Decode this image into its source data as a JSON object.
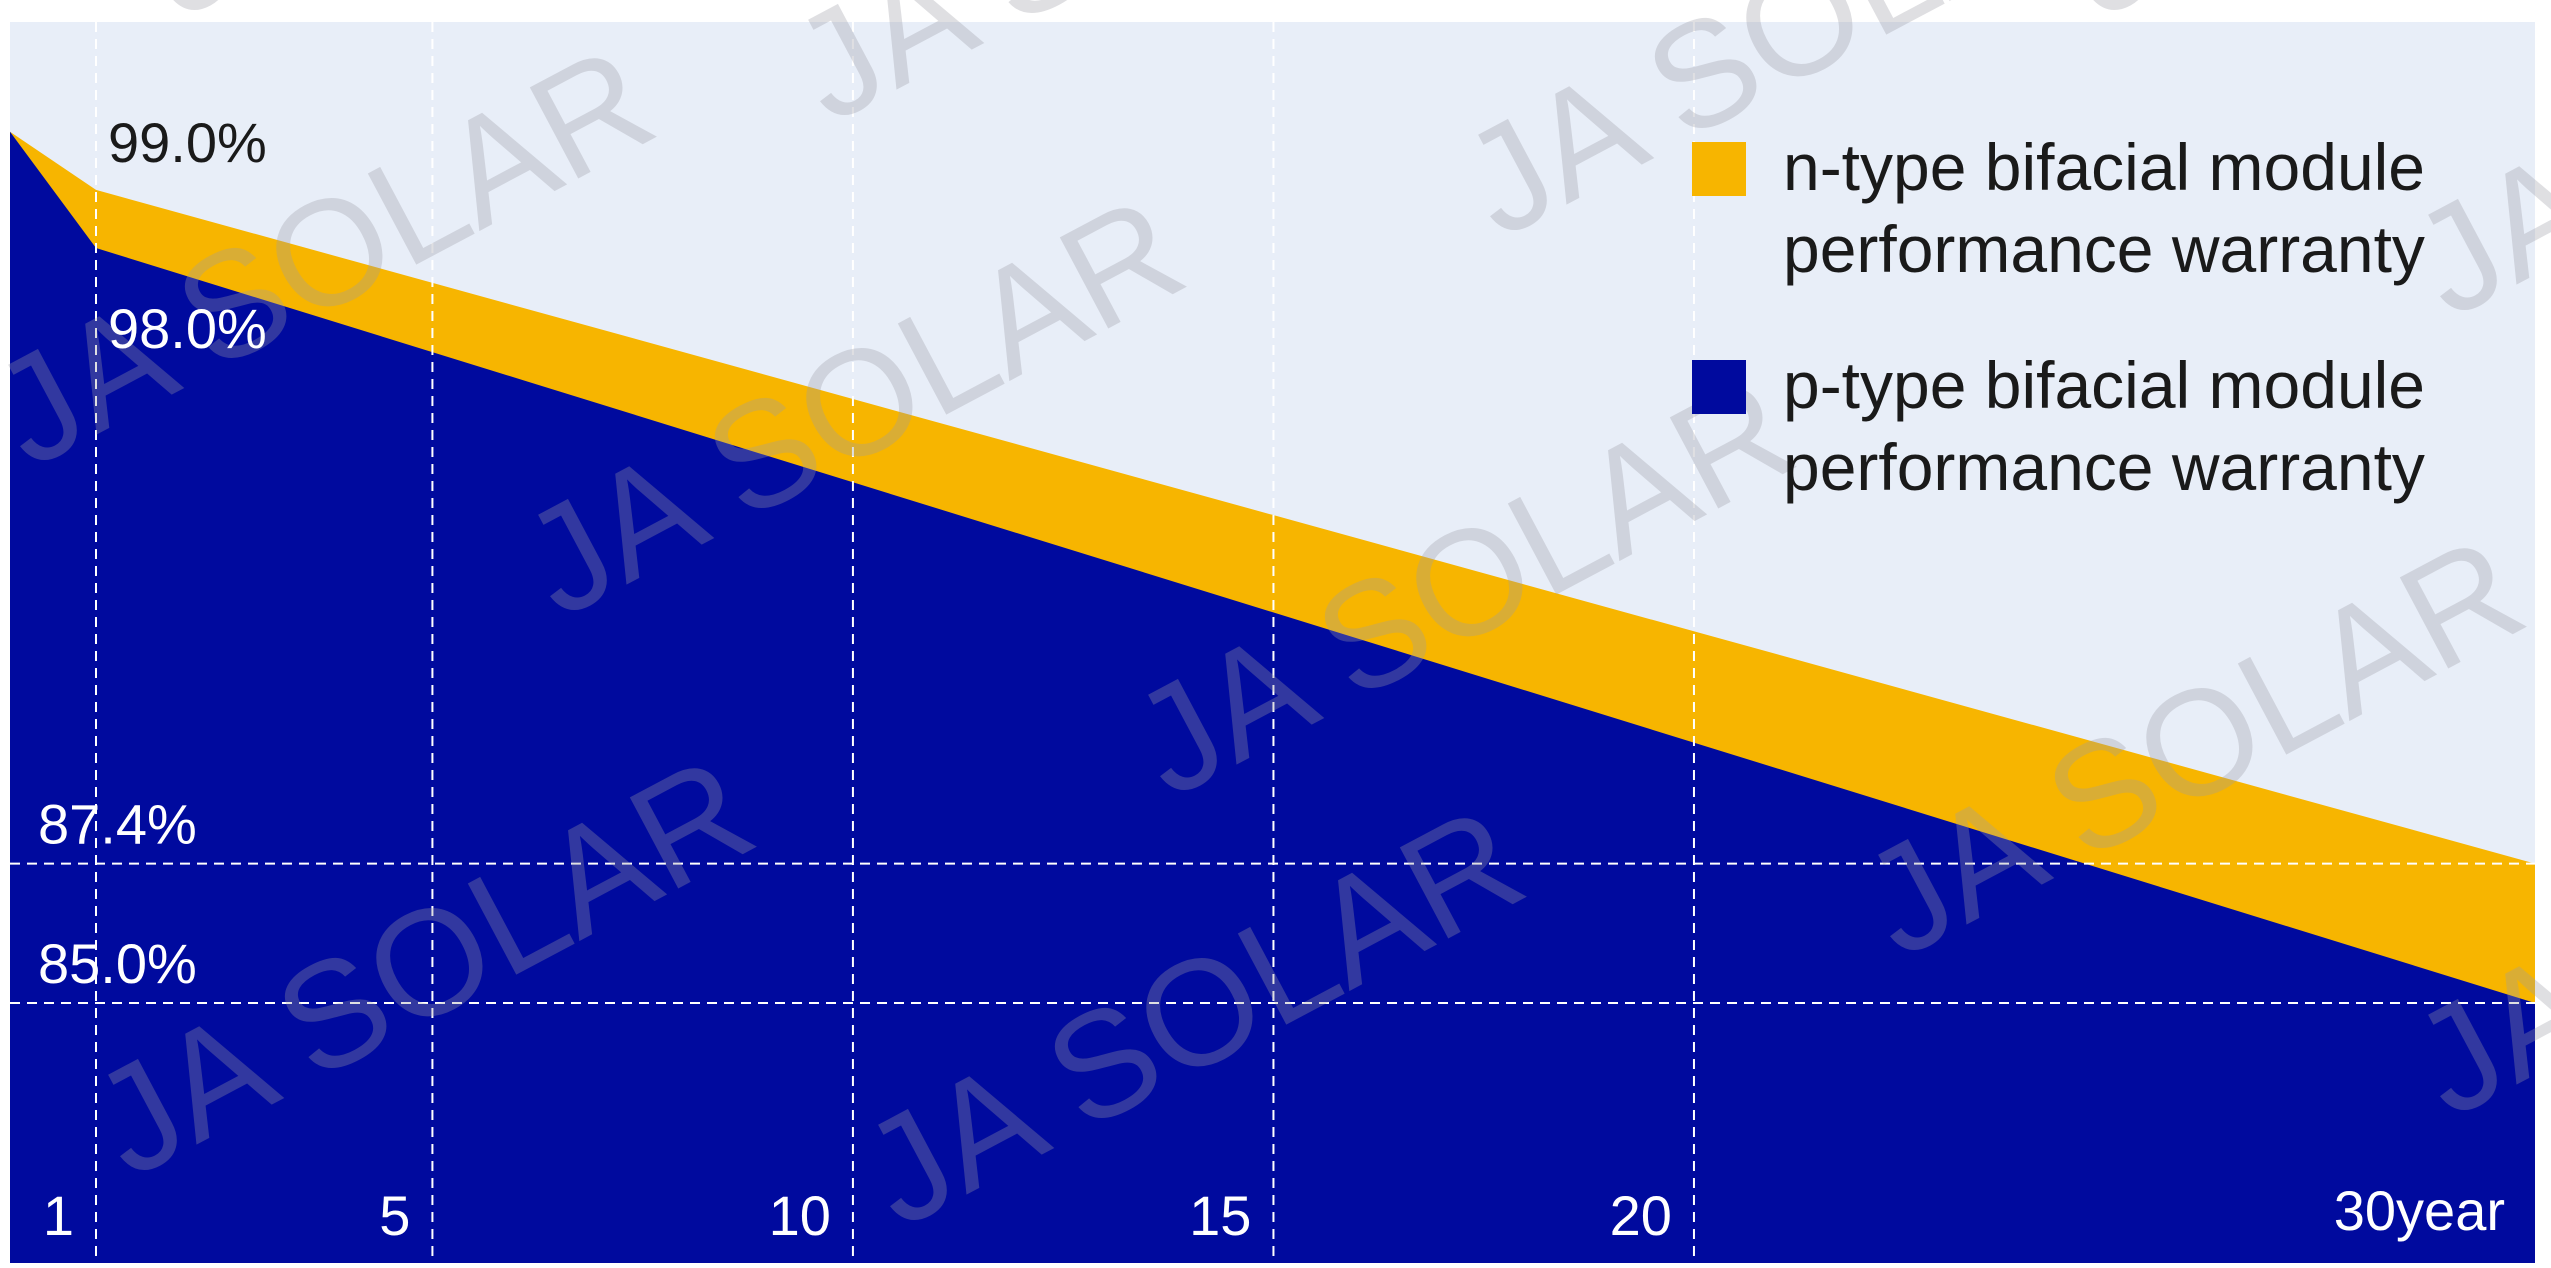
{
  "chart_data": {
    "type": "area",
    "title": "",
    "xlabel": "",
    "ylabel": "",
    "x_ticks": [
      {
        "value": 1,
        "label": "1"
      },
      {
        "value": 5,
        "label": "5"
      },
      {
        "value": 10,
        "label": "10"
      },
      {
        "value": 15,
        "label": "15"
      },
      {
        "value": 20,
        "label": "20"
      },
      {
        "value": 30,
        "label": "30year"
      }
    ],
    "xlim": [
      0,
      30
    ],
    "ylim": [
      81.0,
      101.0
    ],
    "reference_lines": [
      {
        "value": 87.4,
        "label": "87.4%"
      },
      {
        "value": 85.0,
        "label": "85.0%"
      }
    ],
    "grid": true,
    "legend_position": "top-right",
    "series": [
      {
        "name": "n-type bifacial module performance warranty",
        "color": "#F7B500",
        "x": [
          0,
          1,
          30
        ],
        "values": [
          100.0,
          99.0,
          87.4
        ]
      },
      {
        "name": "p-type bifacial module performance warranty",
        "color": "#000A9E",
        "x": [
          0,
          1,
          30
        ],
        "values": [
          100.0,
          98.0,
          85.0
        ]
      }
    ],
    "annotations": [
      {
        "x": 1,
        "y": 99.0,
        "label": "99.0%"
      },
      {
        "x": 1,
        "y": 98.0,
        "label": "98.0%"
      }
    ],
    "watermark": "JA SOLAR",
    "colors": {
      "plot_background": "#E8EEF8",
      "grid_line": "#FFFFFF",
      "label_dark": "#1A1A1A",
      "label_light": "#FFFFFF",
      "watermark": "#9A9AA6"
    }
  }
}
